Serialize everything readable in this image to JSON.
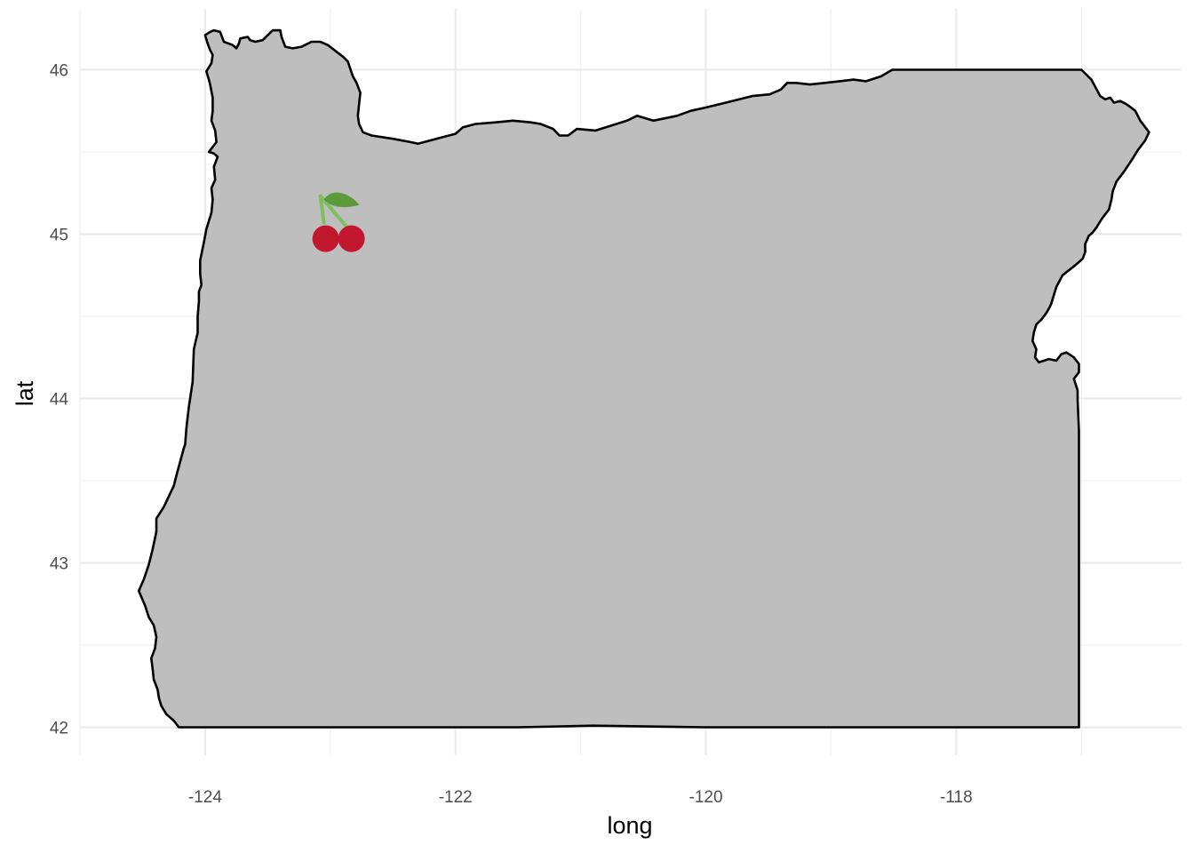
{
  "chart_data": {
    "type": "map",
    "region": "Oregon",
    "xlabel": "long",
    "ylabel": "lat",
    "xlim": [
      -125.0,
      -116.2
    ],
    "ylim": [
      41.83,
      46.37
    ],
    "x_ticks": [
      -124,
      -122,
      -120,
      -118
    ],
    "x_tick_labels": [
      "-124",
      "-122",
      "-120",
      "-118"
    ],
    "y_ticks": [
      42,
      43,
      44,
      45,
      46
    ],
    "y_tick_labels": [
      "42",
      "43",
      "44",
      "45",
      "46"
    ],
    "x_minor_ticks": [
      -125,
      -123,
      -121,
      -119,
      -117
    ],
    "y_minor_ticks": [
      42.5,
      43.5,
      44.5,
      45.5
    ],
    "grid": true,
    "theme": "minimal",
    "fill_color": "#bebebe",
    "outline_color": "#000000",
    "marker": {
      "icon": "cherry-icon",
      "long": -123.03,
      "lat": 44.94
    },
    "outline": [
      [
        -123.96,
        46.23
      ],
      [
        -123.93,
        46.24
      ],
      [
        -123.88,
        46.23
      ],
      [
        -123.85,
        46.17
      ],
      [
        -123.78,
        46.15
      ],
      [
        -123.75,
        46.13
      ],
      [
        -123.73,
        46.16
      ],
      [
        -123.72,
        46.19
      ],
      [
        -123.66,
        46.2
      ],
      [
        -123.64,
        46.18
      ],
      [
        -123.6,
        46.17
      ],
      [
        -123.54,
        46.18
      ],
      [
        -123.5,
        46.21
      ],
      [
        -123.46,
        46.24
      ],
      [
        -123.4,
        46.24
      ],
      [
        -123.39,
        46.2
      ],
      [
        -123.36,
        46.14
      ],
      [
        -123.3,
        46.13
      ],
      [
        -123.23,
        46.14
      ],
      [
        -123.15,
        46.17
      ],
      [
        -123.08,
        46.17
      ],
      [
        -123.02,
        46.15
      ],
      [
        -122.9,
        46.08
      ],
      [
        -122.86,
        46.05
      ],
      [
        -122.82,
        45.96
      ],
      [
        -122.79,
        45.92
      ],
      [
        -122.76,
        45.86
      ],
      [
        -122.77,
        45.79
      ],
      [
        -122.78,
        45.72
      ],
      [
        -122.77,
        45.67
      ],
      [
        -122.74,
        45.62
      ],
      [
        -122.67,
        45.6
      ],
      [
        -122.5,
        45.58
      ],
      [
        -122.36,
        45.56
      ],
      [
        -122.3,
        45.55
      ],
      [
        -122.1,
        45.59
      ],
      [
        -122.0,
        45.61
      ],
      [
        -121.94,
        45.65
      ],
      [
        -121.84,
        45.67
      ],
      [
        -121.68,
        45.68
      ],
      [
        -121.54,
        45.69
      ],
      [
        -121.4,
        45.68
      ],
      [
        -121.32,
        45.67
      ],
      [
        -121.22,
        45.64
      ],
      [
        -121.17,
        45.6
      ],
      [
        -121.1,
        45.6
      ],
      [
        -121.03,
        45.64
      ],
      [
        -120.88,
        45.63
      ],
      [
        -120.63,
        45.69
      ],
      [
        -120.55,
        45.72
      ],
      [
        -120.42,
        45.69
      ],
      [
        -120.23,
        45.72
      ],
      [
        -120.12,
        45.75
      ],
      [
        -120.0,
        45.77
      ],
      [
        -119.84,
        45.8
      ],
      [
        -119.63,
        45.84
      ],
      [
        -119.49,
        45.85
      ],
      [
        -119.4,
        45.88
      ],
      [
        -119.35,
        45.92
      ],
      [
        -119.28,
        45.92
      ],
      [
        -119.17,
        45.91
      ],
      [
        -119.05,
        45.92
      ],
      [
        -118.93,
        45.93
      ],
      [
        -118.82,
        45.94
      ],
      [
        -118.72,
        45.93
      ],
      [
        -118.6,
        45.96
      ],
      [
        -118.51,
        46.0
      ],
      [
        -118.0,
        46.0
      ],
      [
        -117.6,
        46.0
      ],
      [
        -117.0,
        46.0
      ],
      [
        -116.92,
        45.94
      ],
      [
        -116.85,
        45.84
      ],
      [
        -116.81,
        45.82
      ],
      [
        -116.77,
        45.83
      ],
      [
        -116.74,
        45.8
      ],
      [
        -116.69,
        45.81
      ],
      [
        -116.64,
        45.79
      ],
      [
        -116.57,
        45.75
      ],
      [
        -116.53,
        45.69
      ],
      [
        -116.46,
        45.62
      ],
      [
        -116.49,
        45.57
      ],
      [
        -116.55,
        45.51
      ],
      [
        -116.59,
        45.46
      ],
      [
        -116.66,
        45.38
      ],
      [
        -116.72,
        45.32
      ],
      [
        -116.75,
        45.26
      ],
      [
        -116.76,
        45.21
      ],
      [
        -116.78,
        45.15
      ],
      [
        -116.84,
        45.09
      ],
      [
        -116.88,
        45.04
      ],
      [
        -116.91,
        45.01
      ],
      [
        -116.94,
        44.99
      ],
      [
        -116.97,
        44.94
      ],
      [
        -116.97,
        44.89
      ],
      [
        -116.99,
        44.85
      ],
      [
        -117.05,
        44.81
      ],
      [
        -117.1,
        44.78
      ],
      [
        -117.15,
        44.75
      ],
      [
        -117.2,
        44.68
      ],
      [
        -117.24,
        44.58
      ],
      [
        -117.25,
        44.56
      ],
      [
        -117.28,
        44.52
      ],
      [
        -117.32,
        44.48
      ],
      [
        -117.36,
        44.45
      ],
      [
        -117.38,
        44.4
      ],
      [
        -117.39,
        44.35
      ],
      [
        -117.36,
        44.3
      ],
      [
        -117.37,
        44.25
      ],
      [
        -117.34,
        44.22
      ],
      [
        -117.26,
        44.24
      ],
      [
        -117.2,
        44.23
      ],
      [
        -117.16,
        44.27
      ],
      [
        -117.12,
        44.28
      ],
      [
        -117.06,
        44.25
      ],
      [
        -117.02,
        44.21
      ],
      [
        -117.02,
        44.16
      ],
      [
        -117.06,
        44.12
      ],
      [
        -117.03,
        44.05
      ],
      [
        -117.03,
        43.99
      ],
      [
        -117.02,
        43.8
      ],
      [
        -117.02,
        43.4
      ],
      [
        -117.02,
        42.9
      ],
      [
        -117.02,
        42.4
      ],
      [
        -117.02,
        42.0
      ],
      [
        -118.0,
        42.0
      ],
      [
        -119.0,
        42.0
      ],
      [
        -120.0,
        42.0
      ],
      [
        -120.9,
        42.01
      ],
      [
        -121.5,
        42.0
      ],
      [
        -122.5,
        42.0
      ],
      [
        -123.0,
        42.0
      ],
      [
        -123.5,
        42.0
      ],
      [
        -124.0,
        42.0
      ],
      [
        -124.21,
        42.0
      ],
      [
        -124.25,
        42.04
      ],
      [
        -124.31,
        42.08
      ],
      [
        -124.35,
        42.13
      ],
      [
        -124.37,
        42.18
      ],
      [
        -124.38,
        42.23
      ],
      [
        -124.41,
        42.29
      ],
      [
        -124.42,
        42.36
      ],
      [
        -124.43,
        42.42
      ],
      [
        -124.4,
        42.48
      ],
      [
        -124.39,
        42.55
      ],
      [
        -124.41,
        42.62
      ],
      [
        -124.45,
        42.67
      ],
      [
        -124.48,
        42.74
      ],
      [
        -124.53,
        42.83
      ],
      [
        -124.49,
        42.9
      ],
      [
        -124.45,
        42.99
      ],
      [
        -124.42,
        43.08
      ],
      [
        -124.39,
        43.19
      ],
      [
        -124.39,
        43.27
      ],
      [
        -124.33,
        43.34
      ],
      [
        -124.25,
        43.47
      ],
      [
        -124.23,
        43.53
      ],
      [
        -124.17,
        43.7
      ],
      [
        -124.16,
        43.72
      ],
      [
        -124.15,
        43.82
      ],
      [
        -124.13,
        43.95
      ],
      [
        -124.1,
        44.1
      ],
      [
        -124.09,
        44.3
      ],
      [
        -124.06,
        44.4
      ],
      [
        -124.06,
        44.5
      ],
      [
        -124.05,
        44.59
      ],
      [
        -124.05,
        44.65
      ],
      [
        -124.03,
        44.69
      ],
      [
        -124.04,
        44.76
      ],
      [
        -124.04,
        44.84
      ],
      [
        -124.01,
        44.95
      ],
      [
        -123.99,
        45.03
      ],
      [
        -123.95,
        45.13
      ],
      [
        -123.94,
        45.21
      ],
      [
        -123.95,
        45.28
      ],
      [
        -123.92,
        45.33
      ],
      [
        -123.93,
        45.41
      ],
      [
        -123.9,
        45.47
      ],
      [
        -123.93,
        45.49
      ],
      [
        -123.97,
        45.5
      ],
      [
        -123.91,
        45.56
      ],
      [
        -123.92,
        45.63
      ],
      [
        -123.95,
        45.69
      ],
      [
        -123.94,
        45.75
      ],
      [
        -123.94,
        45.83
      ],
      [
        -123.96,
        45.91
      ],
      [
        -123.97,
        45.94
      ],
      [
        -123.99,
        45.99
      ],
      [
        -123.95,
        46.04
      ],
      [
        -123.94,
        46.09
      ],
      [
        -123.96,
        46.12
      ],
      [
        -123.98,
        46.16
      ],
      [
        -124.0,
        46.21
      ]
    ]
  }
}
